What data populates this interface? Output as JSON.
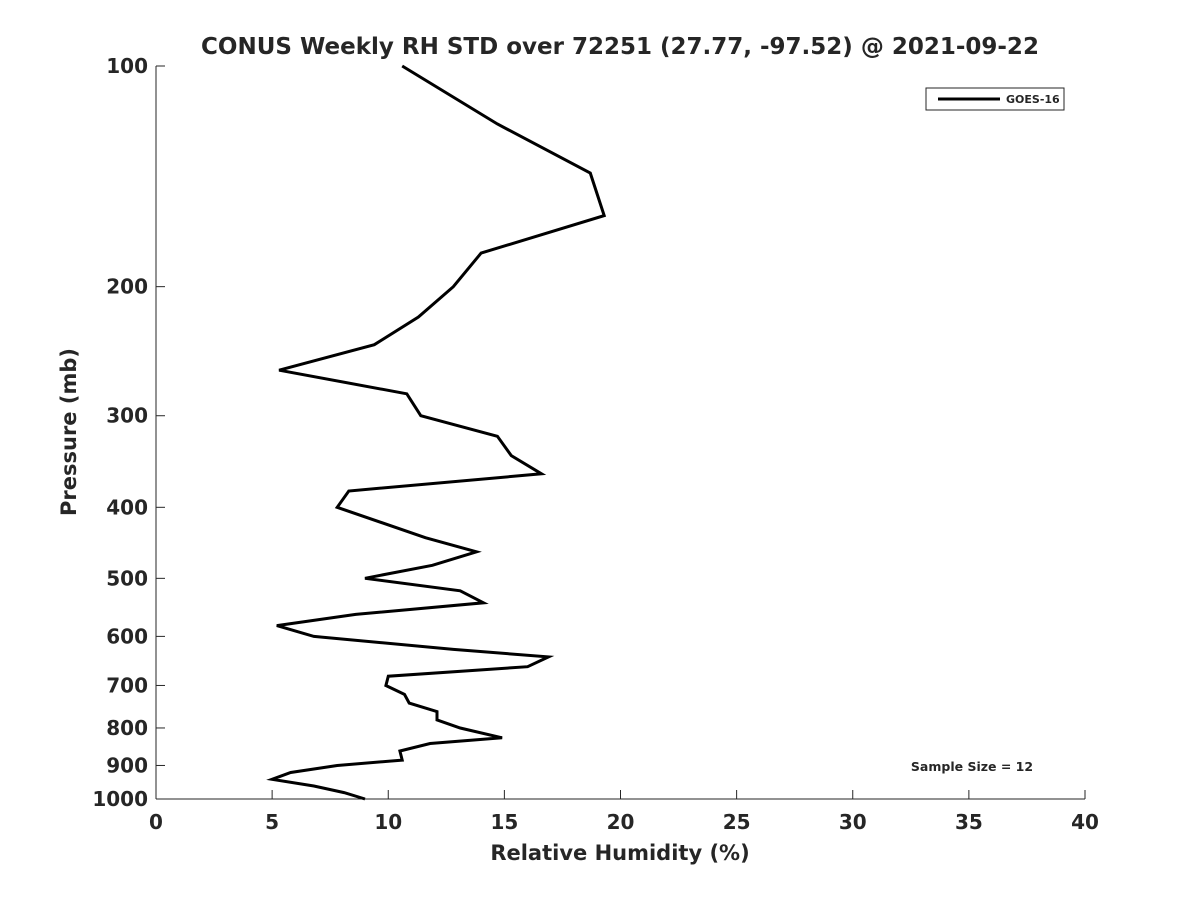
{
  "chart_data": {
    "type": "line",
    "title": "CONUS Weekly RH STD over 72251 (27.77, -97.52) @ 2021-09-22",
    "xlabel": "Relative Humidity (%)",
    "ylabel": "Pressure (mb)",
    "xlim": [
      0,
      40
    ],
    "ylim": [
      100,
      1000
    ],
    "yscale": "log",
    "y_reversed": true,
    "grid": false,
    "x_ticks": [
      0,
      5,
      10,
      15,
      20,
      25,
      30,
      35,
      40
    ],
    "y_ticks": [
      100,
      200,
      300,
      400,
      500,
      600,
      700,
      800,
      900,
      1000
    ],
    "legend": {
      "position": "top-right",
      "entries": [
        "GOES-16"
      ]
    },
    "annotation": "Sample Size = 12",
    "series": [
      {
        "name": "GOES-16",
        "color": "#000000",
        "rh": [
          10.6,
          14.7,
          18.7,
          19.3,
          14.0,
          12.8,
          11.3,
          9.4,
          5.3,
          10.8,
          11.4,
          14.7,
          15.3,
          16.6,
          8.3,
          7.8,
          11.6,
          13.8,
          11.9,
          9.0,
          13.1,
          14.1,
          8.6,
          5.2,
          6.8,
          12.8,
          16.9,
          16.0,
          10.0,
          9.9,
          10.7,
          10.9,
          12.1,
          12.1,
          13.1,
          14.9,
          11.8,
          10.5,
          10.6,
          7.8,
          5.8,
          5.0,
          6.8,
          8.1,
          9.0
        ],
        "pressure": [
          100,
          120,
          140,
          160,
          180,
          200,
          220,
          240,
          260,
          280,
          300,
          320,
          340,
          360,
          380,
          400,
          440,
          460,
          480,
          500,
          520,
          540,
          560,
          580,
          600,
          625,
          640,
          660,
          680,
          700,
          720,
          740,
          760,
          780,
          800,
          825,
          840,
          860,
          885,
          900,
          920,
          940,
          960,
          980,
          1000
        ]
      }
    ]
  }
}
